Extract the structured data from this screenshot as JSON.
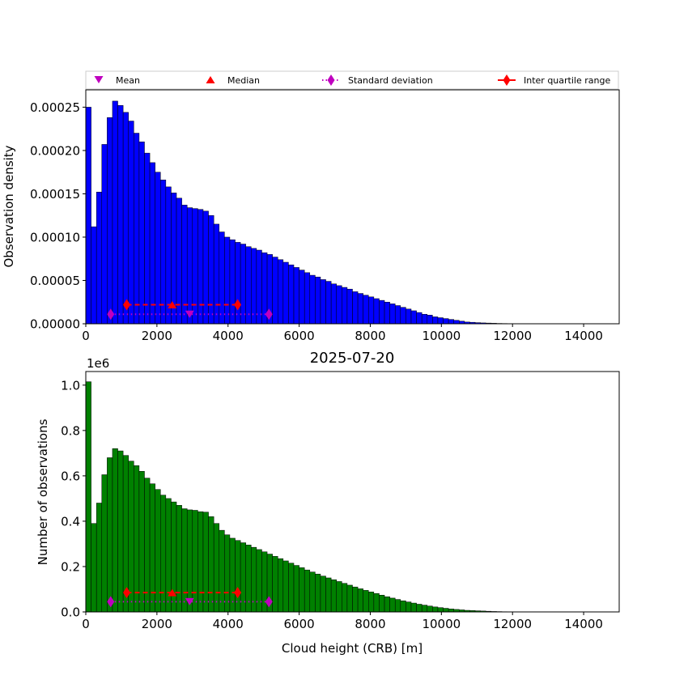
{
  "legend": {
    "items": [
      {
        "label": "Mean",
        "marker": "triangle-down",
        "color": "#bf00bf"
      },
      {
        "label": "Median",
        "marker": "triangle-up",
        "color": "#ff0000"
      },
      {
        "label": "Standard deviation",
        "marker": "diamond-dotted",
        "color": "#bf00bf"
      },
      {
        "label": "Inter quartile range",
        "marker": "diamond-line",
        "color": "#ff0000"
      }
    ]
  },
  "bottom_title": "2025-07-20",
  "bottom_multiplier": "1e6",
  "chart_data": [
    {
      "type": "bar",
      "xlabel": "",
      "ylabel": "Observation density",
      "xlim": [
        0,
        15000
      ],
      "ylim": [
        0,
        0.00027
      ],
      "xticks": [
        0,
        2000,
        4000,
        6000,
        8000,
        10000,
        12000,
        14000
      ],
      "yticks": [
        0,
        5e-05,
        0.0001,
        0.00015,
        0.0002,
        0.00025
      ],
      "ytick_labels": [
        "0.00000",
        "0.00005",
        "0.00010",
        "0.00015",
        "0.00020",
        "0.00025"
      ],
      "bin_width": 150,
      "bar_color": "#0000ff",
      "values": [
        0.00025,
        0.000112,
        0.000152,
        0.000207,
        0.000238,
        0.000257,
        0.000252,
        0.000244,
        0.000234,
        0.00022,
        0.00021,
        0.000197,
        0.000186,
        0.000175,
        0.000166,
        0.000158,
        0.000151,
        0.000145,
        0.000137,
        0.000134,
        0.000133,
        0.000132,
        0.00013,
        0.000125,
        0.000115,
        0.000106,
        0.0001,
        9.7e-05,
        9.4e-05,
        9.2e-05,
        8.9e-05,
        8.7e-05,
        8.5e-05,
        8.2e-05,
        8e-05,
        7.7e-05,
        7.4e-05,
        7.1e-05,
        6.8e-05,
        6.5e-05,
        6.2e-05,
        5.9e-05,
        5.6e-05,
        5.4e-05,
        5.1e-05,
        4.9e-05,
        4.6e-05,
        4.4e-05,
        4.2e-05,
        4e-05,
        3.7e-05,
        3.5e-05,
        3.3e-05,
        3.1e-05,
        2.9e-05,
        2.7e-05,
        2.5e-05,
        2.3e-05,
        2.1e-05,
        1.9e-05,
        1.7e-05,
        1.5e-05,
        1.3e-05,
        1.1e-05,
        1e-05,
        8e-06,
        7e-06,
        6e-06,
        5e-06,
        4e-06,
        3e-06,
        2e-06,
        1.7e-06,
        1.3e-06,
        1e-06,
        8e-07,
        6e-07,
        4e-07,
        3e-07,
        2e-07,
        1.5e-07,
        1e-07,
        8e-08,
        6e-08,
        5e-08,
        4e-08,
        3e-08,
        2e-08,
        2e-08,
        1e-08,
        1e-08,
        1e-08,
        1e-08,
        1e-08,
        1e-08,
        1e-08,
        1e-08,
        1e-08,
        1e-08,
        1e-08
      ],
      "stats": {
        "mean": {
          "x": 2920,
          "y": 1.1e-05
        },
        "median": {
          "x": 2430,
          "y": 2.2e-05
        },
        "std_range": {
          "x": [
            700,
            5150
          ],
          "y": 1.1e-05
        },
        "iqr": {
          "x": [
            1150,
            4270
          ],
          "y": 2.2e-05
        }
      }
    },
    {
      "type": "bar",
      "title": "2025-07-20",
      "xlabel": "Cloud height (CRB) [m]",
      "ylabel": "Number of observations",
      "xlim": [
        0,
        15000
      ],
      "ylim": [
        0,
        1.06
      ],
      "y_multiplier": "1e6",
      "xticks": [
        0,
        2000,
        4000,
        6000,
        8000,
        10000,
        12000,
        14000
      ],
      "yticks": [
        0,
        0.2,
        0.4,
        0.6,
        0.8,
        1.0
      ],
      "ytick_labels": [
        "0.0",
        "0.2",
        "0.4",
        "0.6",
        "0.8",
        "1.0"
      ],
      "bin_width": 150,
      "bar_color": "#008000",
      "values": [
        1.015,
        0.39,
        0.48,
        0.605,
        0.68,
        0.72,
        0.71,
        0.69,
        0.665,
        0.645,
        0.62,
        0.59,
        0.565,
        0.54,
        0.515,
        0.5,
        0.485,
        0.47,
        0.455,
        0.45,
        0.448,
        0.442,
        0.44,
        0.42,
        0.39,
        0.36,
        0.34,
        0.325,
        0.315,
        0.305,
        0.295,
        0.285,
        0.275,
        0.265,
        0.255,
        0.245,
        0.235,
        0.225,
        0.215,
        0.205,
        0.195,
        0.185,
        0.176,
        0.167,
        0.158,
        0.15,
        0.142,
        0.134,
        0.126,
        0.118,
        0.11,
        0.102,
        0.095,
        0.088,
        0.081,
        0.074,
        0.067,
        0.061,
        0.055,
        0.049,
        0.044,
        0.039,
        0.034,
        0.03,
        0.026,
        0.022,
        0.019,
        0.016,
        0.013,
        0.011,
        0.009,
        0.007,
        0.006,
        0.005,
        0.004,
        0.003,
        0.002,
        0.0015,
        0.001,
        0.0008,
        0.0006,
        0.0005,
        0.0004,
        0.0003,
        0.0002,
        0.0002,
        0.0001,
        0.0001,
        0.0001,
        0.0001,
        0.0001,
        0.0001,
        0.0001,
        0.0001,
        0.0001,
        0.0001,
        0.0001,
        0.0001,
        0.0001,
        0.0001
      ],
      "stats": {
        "mean": {
          "x": 2920,
          "y": 0.045
        },
        "median": {
          "x": 2430,
          "y": 0.085
        },
        "std_range": {
          "x": [
            700,
            5150
          ],
          "y": 0.045
        },
        "iqr": {
          "x": [
            1150,
            4270
          ],
          "y": 0.085
        }
      }
    }
  ]
}
